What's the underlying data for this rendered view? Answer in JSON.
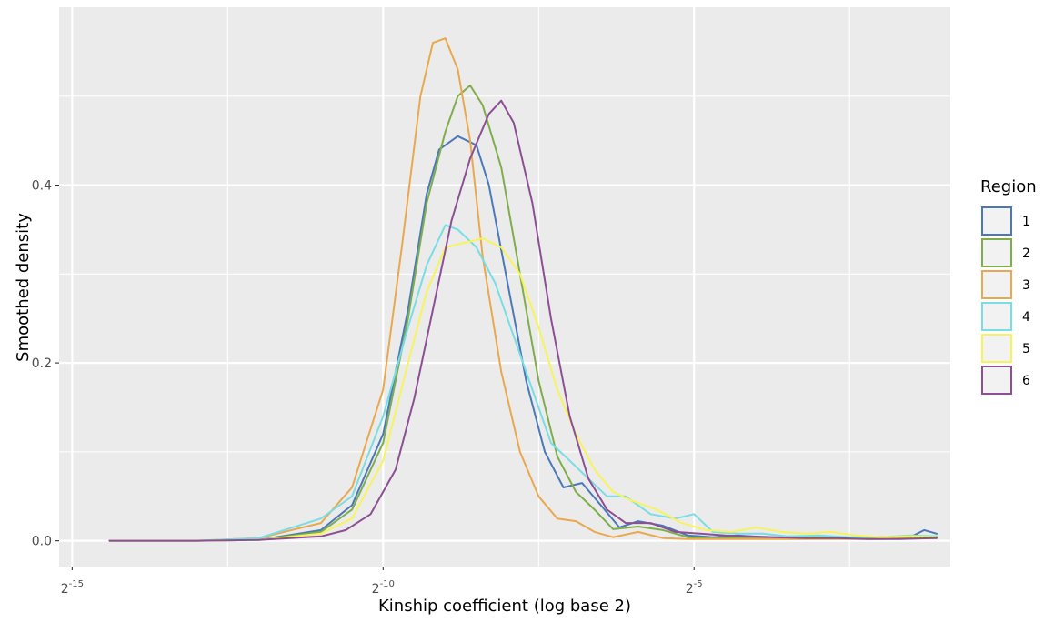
{
  "chart_data": {
    "type": "line",
    "title": "",
    "xlabel": "Kinship coefficient (log base 2)",
    "ylabel": "Smoothed density",
    "x_scale": "log2",
    "x_ticks": [
      {
        "base": "2",
        "exp": "-15",
        "exponent": -15
      },
      {
        "base": "2",
        "exp": "-10",
        "exponent": -10
      },
      {
        "base": "2",
        "exp": "-5",
        "exponent": -5
      }
    ],
    "y_ticks": [
      "0.0",
      "0.2",
      "0.4"
    ],
    "y_tick_values": [
      0.0,
      0.2,
      0.4
    ],
    "xlim_exponent": [
      -15.21,
      -0.88
    ],
    "ylim": [
      -0.029,
      0.6
    ],
    "grid": true,
    "legend_title": "Region",
    "legend_position": "right",
    "series": [
      {
        "name": "1",
        "color": "#4a78b8",
        "points": [
          [
            -14.4,
            0.0
          ],
          [
            -13.0,
            0.0
          ],
          [
            -12.0,
            0.001
          ],
          [
            -11.0,
            0.012
          ],
          [
            -10.5,
            0.04
          ],
          [
            -10.0,
            0.12
          ],
          [
            -9.6,
            0.26
          ],
          [
            -9.3,
            0.39
          ],
          [
            -9.1,
            0.44
          ],
          [
            -8.8,
            0.455
          ],
          [
            -8.5,
            0.445
          ],
          [
            -8.3,
            0.4
          ],
          [
            -8.0,
            0.29
          ],
          [
            -7.7,
            0.18
          ],
          [
            -7.4,
            0.1
          ],
          [
            -7.1,
            0.06
          ],
          [
            -6.8,
            0.065
          ],
          [
            -6.5,
            0.04
          ],
          [
            -6.2,
            0.015
          ],
          [
            -5.9,
            0.022
          ],
          [
            -5.5,
            0.017
          ],
          [
            -5.1,
            0.006
          ],
          [
            -4.7,
            0.004
          ],
          [
            -4.3,
            0.006
          ],
          [
            -3.9,
            0.004
          ],
          [
            -3.5,
            0.003
          ],
          [
            -3.0,
            0.004
          ],
          [
            -2.5,
            0.003
          ],
          [
            -2.0,
            0.004
          ],
          [
            -1.5,
            0.005
          ],
          [
            -1.3,
            0.012
          ],
          [
            -1.1,
            0.008
          ]
        ]
      },
      {
        "name": "2",
        "color": "#7fad4c",
        "points": [
          [
            -14.4,
            0.0
          ],
          [
            -13.0,
            0.0
          ],
          [
            -12.0,
            0.001
          ],
          [
            -11.0,
            0.01
          ],
          [
            -10.5,
            0.035
          ],
          [
            -10.0,
            0.11
          ],
          [
            -9.6,
            0.25
          ],
          [
            -9.3,
            0.38
          ],
          [
            -9.0,
            0.46
          ],
          [
            -8.8,
            0.5
          ],
          [
            -8.6,
            0.512
          ],
          [
            -8.4,
            0.49
          ],
          [
            -8.1,
            0.42
          ],
          [
            -7.8,
            0.3
          ],
          [
            -7.5,
            0.18
          ],
          [
            -7.2,
            0.095
          ],
          [
            -6.9,
            0.055
          ],
          [
            -6.6,
            0.035
          ],
          [
            -6.3,
            0.013
          ],
          [
            -5.9,
            0.016
          ],
          [
            -5.5,
            0.012
          ],
          [
            -5.1,
            0.004
          ],
          [
            -4.7,
            0.003
          ],
          [
            -4.3,
            0.004
          ],
          [
            -3.9,
            0.003
          ],
          [
            -3.5,
            0.003
          ],
          [
            -3.0,
            0.004
          ],
          [
            -2.5,
            0.003
          ],
          [
            -2.0,
            0.003
          ],
          [
            -1.5,
            0.004
          ],
          [
            -1.1,
            0.005
          ]
        ]
      },
      {
        "name": "3",
        "color": "#e9a84e",
        "points": [
          [
            -14.4,
            0.0
          ],
          [
            -13.0,
            0.0
          ],
          [
            -12.0,
            0.003
          ],
          [
            -11.0,
            0.02
          ],
          [
            -10.5,
            0.06
          ],
          [
            -10.0,
            0.17
          ],
          [
            -9.7,
            0.33
          ],
          [
            -9.4,
            0.5
          ],
          [
            -9.2,
            0.56
          ],
          [
            -9.0,
            0.565
          ],
          [
            -8.8,
            0.53
          ],
          [
            -8.6,
            0.45
          ],
          [
            -8.4,
            0.32
          ],
          [
            -8.1,
            0.19
          ],
          [
            -7.8,
            0.1
          ],
          [
            -7.5,
            0.05
          ],
          [
            -7.2,
            0.025
          ],
          [
            -6.9,
            0.022
          ],
          [
            -6.6,
            0.01
          ],
          [
            -6.3,
            0.004
          ],
          [
            -5.9,
            0.01
          ],
          [
            -5.5,
            0.003
          ],
          [
            -5.1,
            0.002
          ],
          [
            -4.7,
            0.002
          ],
          [
            -4.3,
            0.002
          ],
          [
            -3.9,
            0.002
          ],
          [
            -3.5,
            0.002
          ],
          [
            -3.0,
            0.002
          ],
          [
            -2.5,
            0.002
          ],
          [
            -2.0,
            0.002
          ],
          [
            -1.5,
            0.003
          ],
          [
            -1.1,
            0.003
          ]
        ]
      },
      {
        "name": "4",
        "color": "#79dde4",
        "points": [
          [
            -14.4,
            0.0
          ],
          [
            -13.0,
            0.0
          ],
          [
            -12.0,
            0.003
          ],
          [
            -11.0,
            0.025
          ],
          [
            -10.5,
            0.05
          ],
          [
            -10.0,
            0.14
          ],
          [
            -9.6,
            0.24
          ],
          [
            -9.3,
            0.31
          ],
          [
            -9.0,
            0.355
          ],
          [
            -8.8,
            0.35
          ],
          [
            -8.5,
            0.33
          ],
          [
            -8.2,
            0.29
          ],
          [
            -7.9,
            0.23
          ],
          [
            -7.6,
            0.17
          ],
          [
            -7.3,
            0.11
          ],
          [
            -7.0,
            0.09
          ],
          [
            -6.7,
            0.07
          ],
          [
            -6.4,
            0.05
          ],
          [
            -6.1,
            0.05
          ],
          [
            -5.7,
            0.03
          ],
          [
            -5.3,
            0.025
          ],
          [
            -5.0,
            0.03
          ],
          [
            -4.7,
            0.01
          ],
          [
            -4.3,
            0.008
          ],
          [
            -3.9,
            0.008
          ],
          [
            -3.5,
            0.005
          ],
          [
            -3.0,
            0.006
          ],
          [
            -2.5,
            0.004
          ],
          [
            -2.0,
            0.004
          ],
          [
            -1.5,
            0.006
          ],
          [
            -1.1,
            0.005
          ]
        ]
      },
      {
        "name": "5",
        "color": "#f7f45a",
        "points": [
          [
            -14.4,
            0.0
          ],
          [
            -13.0,
            0.0
          ],
          [
            -12.0,
            0.001
          ],
          [
            -11.0,
            0.008
          ],
          [
            -10.5,
            0.025
          ],
          [
            -10.0,
            0.09
          ],
          [
            -9.6,
            0.2
          ],
          [
            -9.3,
            0.28
          ],
          [
            -9.0,
            0.33
          ],
          [
            -8.7,
            0.335
          ],
          [
            -8.4,
            0.34
          ],
          [
            -8.1,
            0.33
          ],
          [
            -7.8,
            0.3
          ],
          [
            -7.5,
            0.24
          ],
          [
            -7.2,
            0.17
          ],
          [
            -6.9,
            0.12
          ],
          [
            -6.6,
            0.08
          ],
          [
            -6.3,
            0.055
          ],
          [
            -6.0,
            0.045
          ],
          [
            -5.6,
            0.035
          ],
          [
            -5.2,
            0.02
          ],
          [
            -4.8,
            0.012
          ],
          [
            -4.4,
            0.01
          ],
          [
            -4.0,
            0.015
          ],
          [
            -3.6,
            0.01
          ],
          [
            -3.2,
            0.008
          ],
          [
            -2.8,
            0.01
          ],
          [
            -2.4,
            0.006
          ],
          [
            -2.0,
            0.004
          ],
          [
            -1.5,
            0.005
          ],
          [
            -1.1,
            0.004
          ]
        ]
      },
      {
        "name": "6",
        "color": "#8c4f94",
        "points": [
          [
            -14.4,
            0.0
          ],
          [
            -13.0,
            0.0
          ],
          [
            -12.0,
            0.001
          ],
          [
            -11.0,
            0.005
          ],
          [
            -10.6,
            0.012
          ],
          [
            -10.2,
            0.03
          ],
          [
            -9.8,
            0.08
          ],
          [
            -9.5,
            0.16
          ],
          [
            -9.2,
            0.26
          ],
          [
            -8.9,
            0.36
          ],
          [
            -8.6,
            0.43
          ],
          [
            -8.3,
            0.48
          ],
          [
            -8.1,
            0.495
          ],
          [
            -7.9,
            0.47
          ],
          [
            -7.6,
            0.38
          ],
          [
            -7.3,
            0.25
          ],
          [
            -7.0,
            0.14
          ],
          [
            -6.7,
            0.07
          ],
          [
            -6.4,
            0.035
          ],
          [
            -6.1,
            0.02
          ],
          [
            -5.7,
            0.02
          ],
          [
            -5.3,
            0.01
          ],
          [
            -4.9,
            0.008
          ],
          [
            -4.5,
            0.006
          ],
          [
            -4.1,
            0.005
          ],
          [
            -3.7,
            0.004
          ],
          [
            -3.2,
            0.003
          ],
          [
            -2.7,
            0.003
          ],
          [
            -2.2,
            0.002
          ],
          [
            -1.7,
            0.002
          ],
          [
            -1.1,
            0.003
          ]
        ]
      }
    ]
  }
}
